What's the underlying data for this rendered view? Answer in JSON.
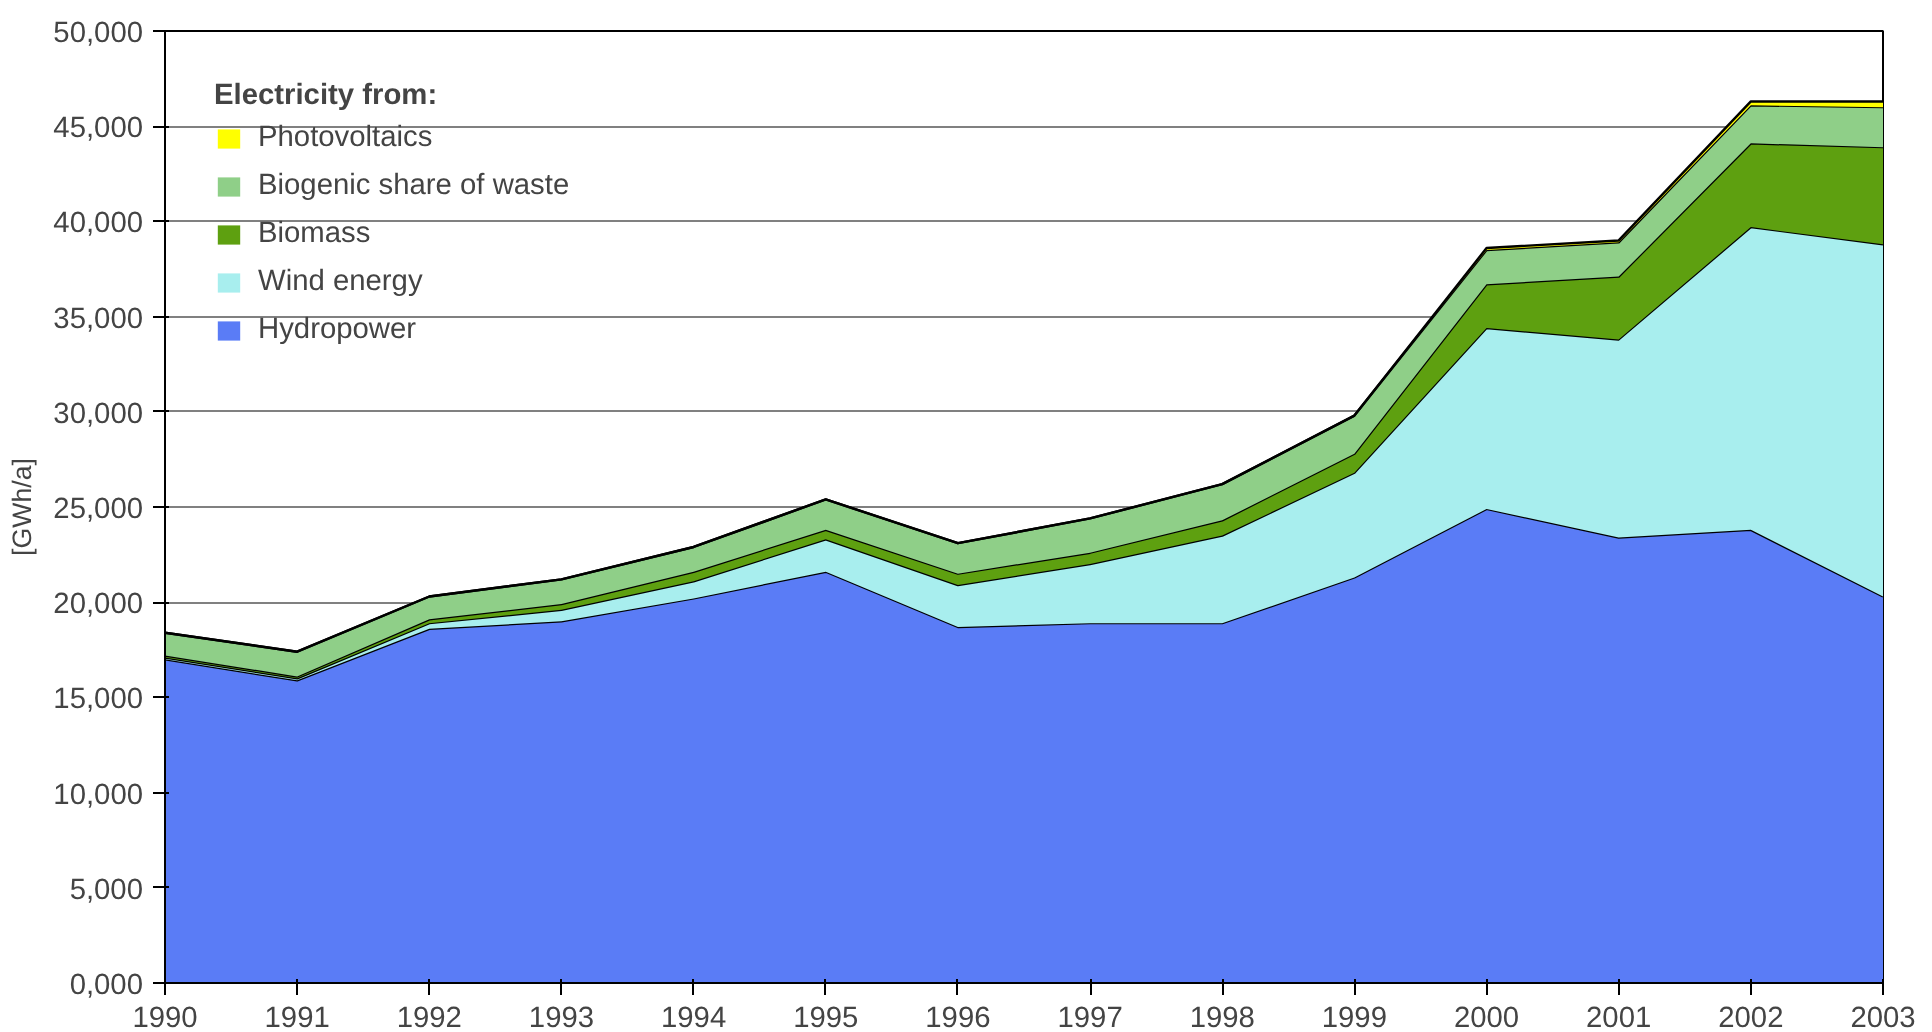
{
  "chart_data": {
    "type": "area",
    "stacked": true,
    "ylabel": "[GWh/a]",
    "legend_title": "Electricity from:",
    "legend": "top left",
    "grid": "y",
    "x": [
      1990,
      1991,
      1992,
      1993,
      1994,
      1995,
      1996,
      1997,
      1998,
      1999,
      2000,
      2001,
      2002,
      2003
    ],
    "xlim": [
      1990,
      2003
    ],
    "xticks": [
      1990,
      1991,
      1992,
      1993,
      1994,
      1995,
      1996,
      1997,
      1998,
      1999,
      2000,
      2001,
      2002,
      2003
    ],
    "ylim": [
      0,
      50000
    ],
    "yticks": [
      {
        "value": 0,
        "label": "0,000"
      },
      {
        "value": 5000,
        "label": "5,000"
      },
      {
        "value": 10000,
        "label": "10,000"
      },
      {
        "value": 15000,
        "label": "15,000"
      },
      {
        "value": 20000,
        "label": "20,000"
      },
      {
        "value": 25000,
        "label": "25,000"
      },
      {
        "value": 30000,
        "label": "30,000"
      },
      {
        "value": 35000,
        "label": "35,000"
      },
      {
        "value": 40000,
        "label": "40,000"
      },
      {
        "value": 45000,
        "label": "45,000"
      },
      {
        "value": 50000,
        "label": "50,000"
      }
    ],
    "series": [
      {
        "name": "Hydropower",
        "color": "#5a7cf6",
        "values": [
          17000,
          15900,
          18600,
          19000,
          20200,
          21600,
          18700,
          18900,
          18900,
          21300,
          24900,
          23400,
          23800,
          20300
        ]
      },
      {
        "name": "Wind energy",
        "color": "#a8eeee",
        "values": [
          100,
          100,
          300,
          600,
          900,
          1700,
          2200,
          3100,
          4600,
          5500,
          9500,
          10400,
          15900,
          18500
        ]
      },
      {
        "name": "Biomass",
        "color": "#5ea010",
        "values": [
          100,
          100,
          200,
          300,
          500,
          500,
          600,
          600,
          800,
          1000,
          2300,
          3300,
          4400,
          5100
        ]
      },
      {
        "name": "Biogenic share of waste",
        "color": "#8fcf88",
        "values": [
          1200,
          1300,
          1200,
          1300,
          1300,
          1600,
          1600,
          1800,
          1900,
          2000,
          1800,
          1800,
          2000,
          2100
        ]
      },
      {
        "name": "Photovoltaics",
        "color": "#ffff00",
        "values": [
          0,
          0,
          0,
          0,
          0,
          0,
          0,
          0,
          0,
          0,
          100,
          100,
          200,
          300
        ]
      }
    ]
  }
}
